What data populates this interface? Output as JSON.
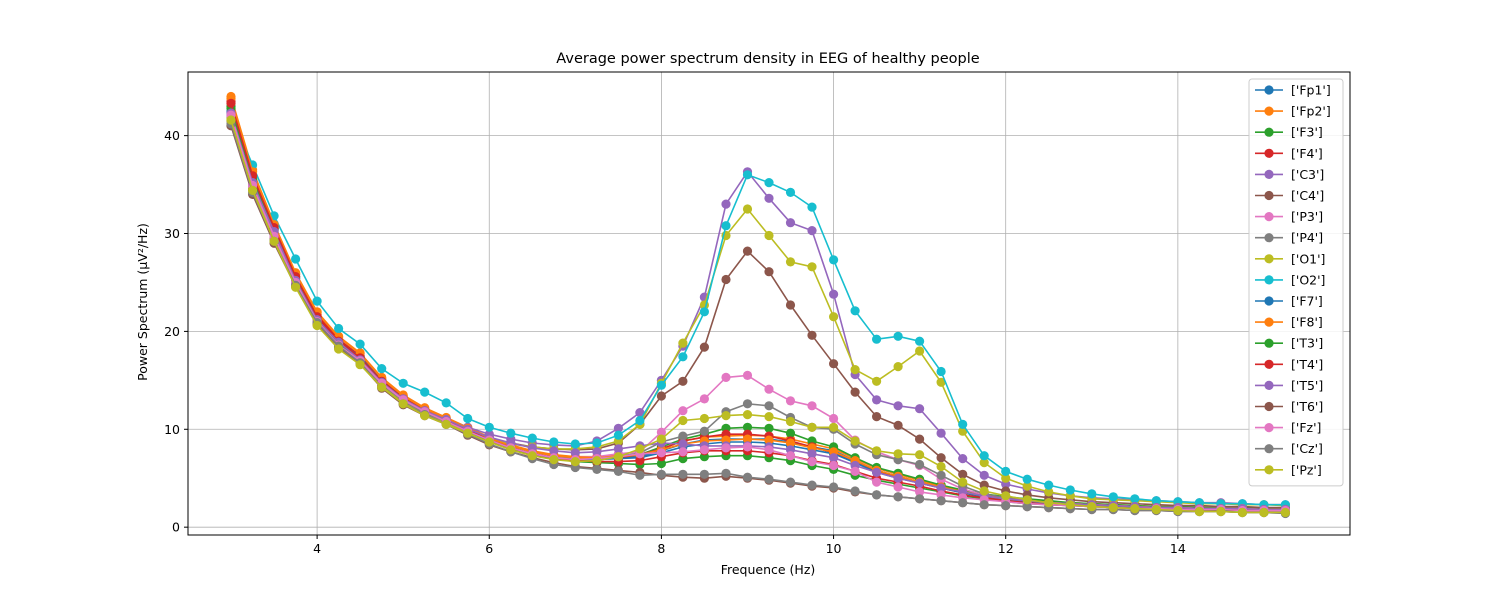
{
  "chart_data": {
    "type": "line",
    "title": "Average power spectrum density in EEG of healthy people",
    "xlabel": "Frequence (Hz)",
    "ylabel": "Power Spectrum (μV²/Hz)",
    "xlim": [
      2.5,
      16.0
    ],
    "ylim": [
      -0.8,
      46.5
    ],
    "xticks": [
      4,
      6,
      8,
      10,
      12,
      14
    ],
    "yticks": [
      0,
      10,
      20,
      30,
      40
    ],
    "grid": true,
    "legend": "top-right",
    "x": [
      3.0,
      3.25,
      3.5,
      3.75,
      4.0,
      4.25,
      4.5,
      4.75,
      5.0,
      5.25,
      5.5,
      5.75,
      6.0,
      6.25,
      6.5,
      6.75,
      7.0,
      7.25,
      7.5,
      7.75,
      8.0,
      8.25,
      8.5,
      8.75,
      9.0,
      9.25,
      9.5,
      9.75,
      10.0,
      10.25,
      10.5,
      10.75,
      11.0,
      11.25,
      11.5,
      11.75,
      12.0,
      12.25,
      12.5,
      12.75,
      13.0,
      13.25,
      13.5,
      13.75,
      14.0,
      14.25,
      14.5,
      14.75,
      15.0,
      15.25
    ],
    "series": [
      {
        "name": "['Fp1']",
        "color": "#1f77b4",
        "values": [
          42.5,
          35.5,
          30.5,
          25.5,
          21.5,
          19.0,
          17.5,
          15.0,
          13.2,
          12.0,
          11.0,
          10.0,
          9.0,
          8.2,
          7.6,
          7.2,
          7.0,
          7.0,
          7.1,
          7.2,
          7.8,
          8.5,
          8.9,
          9.0,
          9.0,
          9.0,
          8.7,
          8.2,
          7.8,
          6.8,
          5.8,
          5.2,
          4.6,
          4.1,
          3.6,
          3.2,
          2.9,
          2.7,
          2.5,
          2.4,
          2.3,
          2.2,
          2.1,
          2.0,
          2.0,
          1.9,
          1.9,
          1.9,
          1.8,
          1.8
        ]
      },
      {
        "name": "['Fp2']",
        "color": "#ff7f0e",
        "values": [
          44.0,
          36.5,
          31.0,
          26.0,
          22.0,
          19.5,
          17.8,
          15.3,
          13.5,
          12.2,
          11.2,
          10.2,
          9.2,
          8.4,
          7.8,
          7.4,
          7.2,
          7.2,
          7.3,
          7.5,
          8.0,
          8.8,
          9.2,
          9.3,
          9.4,
          9.3,
          9.0,
          8.5,
          8.0,
          7.0,
          6.0,
          5.4,
          4.8,
          4.2,
          3.7,
          3.3,
          3.0,
          2.8,
          2.6,
          2.5,
          2.4,
          2.3,
          2.2,
          2.1,
          2.1,
          2.0,
          2.0,
          2.0,
          1.9,
          1.9
        ]
      },
      {
        "name": "['F3']",
        "color": "#2ca02c",
        "values": [
          43.0,
          35.8,
          30.5,
          25.6,
          21.5,
          19.0,
          17.3,
          15.0,
          13.2,
          12.0,
          11.0,
          10.0,
          9.0,
          8.2,
          7.6,
          7.2,
          7.0,
          7.0,
          7.1,
          7.4,
          8.2,
          9.0,
          9.5,
          10.1,
          10.2,
          10.1,
          9.6,
          8.8,
          8.2,
          7.1,
          6.1,
          5.5,
          4.9,
          4.3,
          3.8,
          3.4,
          3.1,
          2.9,
          2.7,
          2.5,
          2.4,
          2.3,
          2.2,
          2.1,
          2.1,
          2.0,
          2.0,
          2.0,
          1.9,
          1.9
        ]
      },
      {
        "name": "['F4']",
        "color": "#d62728",
        "values": [
          43.5,
          36.0,
          30.8,
          25.8,
          21.7,
          19.2,
          17.5,
          15.1,
          13.3,
          12.0,
          11.0,
          10.0,
          9.0,
          8.2,
          7.6,
          7.2,
          7.0,
          7.0,
          7.1,
          7.4,
          8.0,
          8.8,
          9.2,
          9.5,
          9.5,
          9.3,
          8.8,
          8.2,
          7.6,
          6.6,
          5.7,
          5.1,
          4.5,
          4.0,
          3.5,
          3.1,
          2.9,
          2.7,
          2.5,
          2.4,
          2.3,
          2.2,
          2.1,
          2.0,
          2.0,
          1.9,
          1.9,
          1.9,
          1.8,
          1.8
        ]
      },
      {
        "name": "['C3']",
        "color": "#9467bd",
        "values": [
          42.0,
          35.0,
          30.0,
          25.0,
          21.0,
          18.8,
          17.0,
          14.7,
          13.0,
          11.8,
          11.0,
          10.2,
          9.5,
          9.0,
          8.6,
          8.4,
          8.3,
          8.8,
          10.1,
          11.7,
          15.0,
          18.5,
          23.5,
          33.0,
          36.3,
          33.6,
          31.1,
          30.3,
          23.8,
          15.6,
          13.0,
          12.4,
          12.1,
          9.6,
          7.0,
          5.3,
          4.4,
          3.9,
          3.5,
          3.2,
          3.0,
          2.9,
          2.8,
          2.7,
          2.6,
          2.5,
          2.5,
          2.4,
          2.3,
          2.3
        ]
      },
      {
        "name": "['C4']",
        "color": "#8c564b",
        "values": [
          41.5,
          34.5,
          29.5,
          24.8,
          20.8,
          18.5,
          16.8,
          14.5,
          12.8,
          11.6,
          10.7,
          9.8,
          9.0,
          8.6,
          8.2,
          8.0,
          7.9,
          8.0,
          8.6,
          10.5,
          13.4,
          14.9,
          18.4,
          25.3,
          28.2,
          26.1,
          22.7,
          19.6,
          16.7,
          13.8,
          11.3,
          10.4,
          9.0,
          7.1,
          5.4,
          4.3,
          3.7,
          3.3,
          3.0,
          2.8,
          2.6,
          2.5,
          2.4,
          2.3,
          2.2,
          2.2,
          2.1,
          2.1,
          2.0,
          2.0
        ]
      },
      {
        "name": "['P3']",
        "color": "#e377c2",
        "values": [
          42.0,
          34.8,
          29.6,
          24.9,
          20.9,
          18.5,
          16.9,
          14.6,
          12.9,
          11.7,
          10.8,
          9.8,
          8.9,
          8.1,
          7.6,
          7.2,
          7.1,
          7.2,
          7.5,
          7.7,
          9.7,
          11.9,
          13.1,
          15.3,
          15.5,
          14.1,
          12.9,
          12.4,
          11.1,
          8.9,
          7.7,
          6.9,
          6.3,
          4.9,
          3.9,
          3.3,
          2.9,
          2.7,
          2.5,
          2.4,
          2.3,
          2.2,
          2.1,
          2.0,
          2.0,
          1.9,
          1.9,
          1.9,
          1.8,
          1.8
        ]
      },
      {
        "name": "['P4']",
        "color": "#7f7f7f",
        "values": [
          41.8,
          34.6,
          29.4,
          24.7,
          20.8,
          18.4,
          16.8,
          14.5,
          12.8,
          11.6,
          10.7,
          9.8,
          8.9,
          8.1,
          7.5,
          7.1,
          7.0,
          7.0,
          7.2,
          7.6,
          8.7,
          9.3,
          9.8,
          11.8,
          12.6,
          12.4,
          11.2,
          10.2,
          10.0,
          8.5,
          7.4,
          6.9,
          6.4,
          5.3,
          4.2,
          3.4,
          3.0,
          2.7,
          2.5,
          2.4,
          2.3,
          2.2,
          2.1,
          2.0,
          2.0,
          1.9,
          1.9,
          1.9,
          1.8,
          1.8
        ]
      },
      {
        "name": "['O1']",
        "color": "#bcbd22",
        "values": [
          41.7,
          34.5,
          29.3,
          24.6,
          20.7,
          18.3,
          16.7,
          14.4,
          12.7,
          11.5,
          10.6,
          9.7,
          9.0,
          8.5,
          8.2,
          8.0,
          8.0,
          8.2,
          8.8,
          10.5,
          14.7,
          18.8,
          22.7,
          29.8,
          32.5,
          29.8,
          27.1,
          26.6,
          21.5,
          16.1,
          14.9,
          16.4,
          18.0,
          14.8,
          9.8,
          6.6,
          5.0,
          4.2,
          3.6,
          3.2,
          2.9,
          2.8,
          2.7,
          2.6,
          2.5,
          2.4,
          2.4,
          2.3,
          2.3,
          2.2
        ]
      },
      {
        "name": "['O2']",
        "color": "#17becf",
        "values": [
          42.2,
          37.0,
          31.8,
          27.4,
          23.1,
          20.3,
          18.7,
          16.2,
          14.7,
          13.8,
          12.7,
          11.1,
          10.2,
          9.6,
          9.1,
          8.7,
          8.5,
          8.6,
          9.4,
          10.9,
          14.5,
          17.4,
          22.0,
          30.8,
          36.0,
          35.2,
          34.2,
          32.7,
          27.3,
          22.1,
          19.2,
          19.5,
          19.0,
          15.9,
          10.5,
          7.3,
          5.7,
          4.9,
          4.3,
          3.8,
          3.4,
          3.1,
          2.9,
          2.7,
          2.6,
          2.5,
          2.4,
          2.4,
          2.3,
          2.3
        ]
      },
      {
        "name": "['F7']",
        "color": "#1f77b4",
        "values": [
          42.4,
          35.4,
          30.4,
          25.4,
          21.4,
          18.9,
          17.4,
          14.9,
          13.1,
          11.9,
          10.9,
          9.9,
          8.9,
          8.1,
          7.5,
          7.1,
          6.9,
          6.9,
          7.0,
          7.1,
          7.6,
          8.2,
          8.5,
          8.7,
          8.7,
          8.6,
          8.3,
          7.9,
          7.5,
          6.6,
          5.6,
          5.0,
          4.5,
          4.0,
          3.5,
          3.1,
          2.8,
          2.6,
          2.4,
          2.3,
          2.2,
          2.1,
          2.0,
          1.9,
          1.9,
          1.8,
          1.8,
          1.8,
          1.7,
          1.7
        ]
      },
      {
        "name": "['F8']",
        "color": "#ff7f0e",
        "values": [
          43.8,
          36.3,
          30.9,
          25.9,
          21.9,
          19.4,
          17.7,
          15.2,
          13.4,
          12.1,
          11.1,
          10.1,
          9.1,
          8.3,
          7.7,
          7.3,
          7.1,
          7.1,
          7.2,
          7.4,
          7.9,
          8.5,
          8.8,
          8.9,
          9.0,
          8.9,
          8.6,
          8.1,
          7.7,
          6.8,
          5.8,
          5.2,
          4.6,
          4.1,
          3.6,
          3.2,
          2.9,
          2.7,
          2.5,
          2.4,
          2.3,
          2.2,
          2.1,
          2.0,
          2.0,
          1.9,
          1.9,
          1.9,
          1.8,
          1.8
        ]
      },
      {
        "name": "['T3']",
        "color": "#2ca02c",
        "values": [
          42.8,
          35.6,
          30.3,
          25.4,
          21.3,
          18.8,
          17.1,
          14.8,
          13.0,
          11.8,
          10.8,
          9.8,
          8.8,
          8.0,
          7.4,
          7.0,
          6.7,
          6.6,
          6.5,
          6.4,
          6.5,
          7.0,
          7.2,
          7.3,
          7.3,
          7.1,
          6.8,
          6.3,
          5.9,
          5.3,
          4.8,
          4.4,
          4.0,
          3.6,
          3.2,
          2.9,
          2.6,
          2.4,
          2.3,
          2.2,
          2.1,
          2.0,
          1.9,
          1.9,
          1.8,
          1.8,
          1.7,
          1.7,
          1.7,
          1.7
        ]
      },
      {
        "name": "['T4']",
        "color": "#d62728",
        "values": [
          43.3,
          35.9,
          30.6,
          25.6,
          21.5,
          19.0,
          17.3,
          14.9,
          13.1,
          11.9,
          10.9,
          9.9,
          8.9,
          8.1,
          7.5,
          7.1,
          6.8,
          6.7,
          6.7,
          6.8,
          7.2,
          7.6,
          7.8,
          7.8,
          7.8,
          7.6,
          7.3,
          6.8,
          6.4,
          5.7,
          5.0,
          4.6,
          4.2,
          3.7,
          3.3,
          3.0,
          2.7,
          2.5,
          2.3,
          2.2,
          2.1,
          2.0,
          1.9,
          1.9,
          1.8,
          1.8,
          1.8,
          1.7,
          1.7,
          1.7
        ]
      },
      {
        "name": "['T5']",
        "color": "#9467bd",
        "values": [
          42.3,
          35.2,
          30.2,
          25.2,
          21.2,
          18.9,
          17.1,
          14.8,
          13.1,
          11.9,
          11.0,
          10.0,
          9.2,
          8.6,
          8.1,
          7.8,
          7.6,
          7.7,
          8.0,
          8.3,
          8.6,
          8.5,
          8.3,
          8.3,
          8.3,
          8.2,
          7.9,
          7.5,
          7.1,
          6.3,
          5.6,
          5.0,
          4.5,
          4.0,
          3.6,
          3.2,
          2.9,
          2.7,
          2.5,
          2.4,
          2.3,
          2.2,
          2.1,
          2.0,
          2.0,
          1.9,
          1.9,
          1.9,
          1.8,
          1.8
        ]
      },
      {
        "name": "['T6']",
        "color": "#8c564b",
        "values": [
          41.0,
          34.0,
          29.0,
          24.6,
          20.8,
          18.4,
          16.7,
          14.2,
          12.5,
          11.4,
          10.5,
          9.4,
          8.4,
          7.7,
          7.1,
          6.6,
          6.2,
          6.0,
          5.8,
          5.6,
          5.3,
          5.1,
          5.0,
          5.2,
          5.0,
          4.8,
          4.5,
          4.2,
          4.0,
          3.6,
          3.3,
          3.1,
          2.9,
          2.7,
          2.5,
          2.3,
          2.2,
          2.1,
          2.0,
          1.9,
          1.8,
          1.8,
          1.7,
          1.7,
          1.6,
          1.6,
          1.6,
          1.5,
          1.5,
          1.5
        ]
      },
      {
        "name": "['Fz']",
        "color": "#e377c2",
        "values": [
          42.1,
          34.9,
          29.7,
          25.0,
          21.0,
          18.6,
          17.0,
          14.7,
          13.0,
          11.8,
          10.8,
          9.8,
          8.9,
          8.1,
          7.5,
          7.1,
          6.9,
          7.0,
          7.2,
          7.5,
          7.6,
          7.7,
          7.9,
          8.1,
          8.2,
          7.9,
          7.3,
          6.7,
          6.3,
          5.7,
          4.6,
          4.1,
          3.6,
          3.3,
          3.0,
          2.8,
          2.6,
          2.4,
          2.3,
          2.2,
          2.1,
          2.0,
          1.9,
          1.9,
          1.8,
          1.8,
          1.8,
          1.7,
          1.7,
          1.7
        ]
      },
      {
        "name": "['Cz']",
        "color": "#7f7f7f",
        "values": [
          41.2,
          34.2,
          29.2,
          24.7,
          20.9,
          18.5,
          16.8,
          14.3,
          12.6,
          11.5,
          10.5,
          9.5,
          8.5,
          7.7,
          7.0,
          6.4,
          6.1,
          5.9,
          5.7,
          5.3,
          5.4,
          5.4,
          5.4,
          5.5,
          5.1,
          4.9,
          4.6,
          4.3,
          4.1,
          3.7,
          3.3,
          3.1,
          2.9,
          2.7,
          2.5,
          2.3,
          2.2,
          2.1,
          2.0,
          1.9,
          1.8,
          1.8,
          1.7,
          1.7,
          1.6,
          1.6,
          1.6,
          1.5,
          1.5,
          1.4
        ]
      },
      {
        "name": "['Pz']",
        "color": "#bcbd22",
        "values": [
          41.6,
          34.4,
          29.2,
          24.5,
          20.6,
          18.2,
          16.6,
          14.3,
          12.6,
          11.4,
          10.5,
          9.6,
          8.7,
          7.9,
          7.3,
          6.9,
          6.7,
          6.8,
          7.2,
          8.0,
          9.0,
          10.9,
          11.1,
          11.4,
          11.5,
          11.3,
          10.8,
          10.2,
          10.2,
          8.8,
          7.8,
          7.5,
          7.4,
          6.2,
          4.6,
          3.7,
          3.2,
          2.8,
          2.5,
          2.3,
          2.1,
          2.0,
          1.9,
          1.8,
          1.7,
          1.6,
          1.6,
          1.5,
          1.5,
          1.5
        ]
      }
    ]
  }
}
